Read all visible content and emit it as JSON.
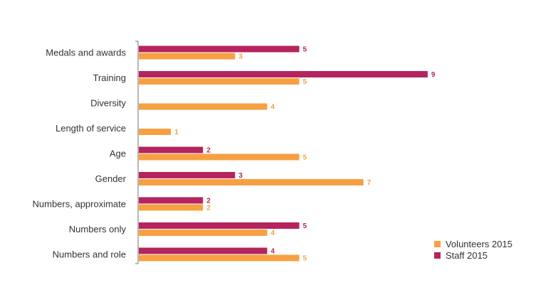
{
  "chart_data": {
    "type": "bar",
    "orientation": "horizontal",
    "categories": [
      "Medals and awards",
      "Training",
      "Diversity",
      "Length of service",
      "Age",
      "Gender",
      "Numbers, approximate",
      "Numbers only",
      "Numbers and role"
    ],
    "series": [
      {
        "name": "Staff 2015",
        "color": "#b5245e",
        "values": [
          5,
          9,
          null,
          null,
          2,
          3,
          2,
          5,
          4
        ]
      },
      {
        "name": "Volunteers 2015",
        "color": "#f7a043",
        "values": [
          3,
          5,
          4,
          1,
          5,
          7,
          2,
          4,
          5
        ]
      }
    ],
    "xlim": [
      0,
      9
    ],
    "grid": false,
    "legend": {
      "position": "bottom-right",
      "order": [
        "Volunteers 2015",
        "Staff 2015"
      ]
    }
  }
}
